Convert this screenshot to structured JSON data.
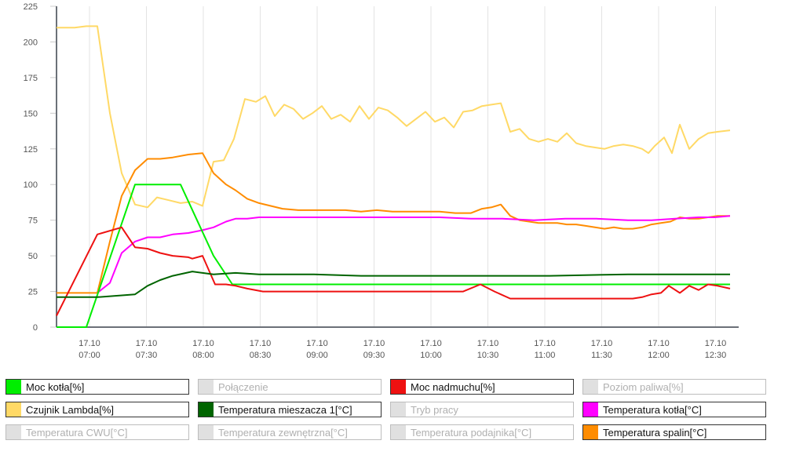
{
  "chart_data": {
    "type": "line",
    "title": "",
    "xlabel": "",
    "ylabel": "",
    "ylim": [
      0,
      225
    ],
    "yticks": [
      0,
      25,
      50,
      75,
      100,
      125,
      150,
      175,
      200,
      225
    ],
    "xticks": [
      {
        "date": "17.10",
        "time": "07:00"
      },
      {
        "date": "17.10",
        "time": "07:30"
      },
      {
        "date": "17.10",
        "time": "08:00"
      },
      {
        "date": "17.10",
        "time": "08:30"
      },
      {
        "date": "17.10",
        "time": "09:00"
      },
      {
        "date": "17.10",
        "time": "09:30"
      },
      {
        "date": "17.10",
        "time": "10:00"
      },
      {
        "date": "17.10",
        "time": "10:30"
      },
      {
        "date": "17.10",
        "time": "11:00"
      },
      {
        "date": "17.10",
        "time": "11:30"
      },
      {
        "date": "17.10",
        "time": "12:00"
      },
      {
        "date": "17.10",
        "time": "12:30"
      }
    ],
    "x_range": [
      "06:43",
      "12:58"
    ],
    "grid": {
      "vertical": true,
      "horizontal": false
    },
    "legend_position": "bottom",
    "series": [
      {
        "name": "Czujnik Lambda[%]",
        "color": "#FFD966",
        "visible": true,
        "points": [
          [
            72,
            210
          ],
          [
            95,
            210
          ],
          [
            110,
            211
          ],
          [
            124,
            211
          ],
          [
            140,
            150
          ],
          [
            155,
            108
          ],
          [
            172,
            86
          ],
          [
            188,
            84
          ],
          [
            200,
            91
          ],
          [
            215,
            89
          ],
          [
            230,
            87
          ],
          [
            245,
            88
          ],
          [
            258,
            85
          ],
          [
            272,
            116
          ],
          [
            285,
            117
          ],
          [
            298,
            132
          ],
          [
            312,
            160
          ],
          [
            326,
            158
          ],
          [
            338,
            162
          ],
          [
            350,
            148
          ],
          [
            362,
            156
          ],
          [
            374,
            153
          ],
          [
            386,
            146
          ],
          [
            398,
            150
          ],
          [
            410,
            155
          ],
          [
            422,
            146
          ],
          [
            434,
            149
          ],
          [
            446,
            144
          ],
          [
            458,
            155
          ],
          [
            470,
            146
          ],
          [
            482,
            154
          ],
          [
            494,
            152
          ],
          [
            506,
            147
          ],
          [
            518,
            141
          ],
          [
            530,
            146
          ],
          [
            542,
            151
          ],
          [
            554,
            144
          ],
          [
            566,
            147
          ],
          [
            578,
            140
          ],
          [
            590,
            151
          ],
          [
            602,
            152
          ],
          [
            614,
            155
          ],
          [
            626,
            156
          ],
          [
            638,
            157
          ],
          [
            650,
            137
          ],
          [
            662,
            139
          ],
          [
            674,
            132
          ],
          [
            686,
            130
          ],
          [
            698,
            132
          ],
          [
            710,
            130
          ],
          [
            722,
            136
          ],
          [
            734,
            129
          ],
          [
            746,
            127
          ],
          [
            758,
            126
          ],
          [
            770,
            125
          ],
          [
            782,
            127
          ],
          [
            794,
            128
          ],
          [
            806,
            127
          ],
          [
            818,
            125
          ],
          [
            826,
            122
          ],
          [
            834,
            127
          ],
          [
            846,
            133
          ],
          [
            856,
            122
          ],
          [
            866,
            142
          ],
          [
            878,
            125
          ],
          [
            890,
            132
          ],
          [
            902,
            136
          ],
          [
            914,
            137
          ],
          [
            930,
            138
          ]
        ]
      },
      {
        "name": "Temperatura spalin[°C]",
        "color": "#FF8C00",
        "visible": true,
        "points": [
          [
            72,
            24
          ],
          [
            95,
            24
          ],
          [
            110,
            24
          ],
          [
            124,
            24
          ],
          [
            140,
            60
          ],
          [
            155,
            92
          ],
          [
            172,
            110
          ],
          [
            188,
            118
          ],
          [
            204,
            118
          ],
          [
            220,
            119
          ],
          [
            240,
            121
          ],
          [
            258,
            122
          ],
          [
            272,
            108
          ],
          [
            288,
            100
          ],
          [
            300,
            96
          ],
          [
            315,
            90
          ],
          [
            330,
            87
          ],
          [
            345,
            85
          ],
          [
            360,
            83
          ],
          [
            380,
            82
          ],
          [
            400,
            82
          ],
          [
            420,
            82
          ],
          [
            440,
            82
          ],
          [
            460,
            81
          ],
          [
            480,
            82
          ],
          [
            500,
            81
          ],
          [
            520,
            81
          ],
          [
            540,
            81
          ],
          [
            560,
            81
          ],
          [
            580,
            80
          ],
          [
            600,
            80
          ],
          [
            614,
            83
          ],
          [
            626,
            84
          ],
          [
            638,
            86
          ],
          [
            650,
            78
          ],
          [
            662,
            75
          ],
          [
            674,
            74
          ],
          [
            686,
            73
          ],
          [
            698,
            73
          ],
          [
            710,
            73
          ],
          [
            722,
            72
          ],
          [
            734,
            72
          ],
          [
            746,
            71
          ],
          [
            758,
            70
          ],
          [
            770,
            69
          ],
          [
            782,
            70
          ],
          [
            794,
            69
          ],
          [
            806,
            69
          ],
          [
            818,
            70
          ],
          [
            830,
            72
          ],
          [
            842,
            73
          ],
          [
            854,
            74
          ],
          [
            866,
            77
          ],
          [
            878,
            76
          ],
          [
            890,
            76
          ],
          [
            902,
            77
          ],
          [
            914,
            78
          ],
          [
            930,
            78
          ]
        ]
      },
      {
        "name": "Temperatura kotła[°C]",
        "color": "#FF00FF",
        "visible": true,
        "points": [
          [
            124,
            24
          ],
          [
            140,
            31
          ],
          [
            155,
            52
          ],
          [
            172,
            60
          ],
          [
            188,
            63
          ],
          [
            204,
            63
          ],
          [
            220,
            65
          ],
          [
            240,
            66
          ],
          [
            258,
            68
          ],
          [
            272,
            70
          ],
          [
            288,
            74
          ],
          [
            300,
            76
          ],
          [
            315,
            76
          ],
          [
            330,
            77
          ],
          [
            345,
            77
          ],
          [
            360,
            77
          ],
          [
            400,
            77
          ],
          [
            440,
            77
          ],
          [
            480,
            77
          ],
          [
            520,
            77
          ],
          [
            560,
            77
          ],
          [
            600,
            76
          ],
          [
            640,
            76
          ],
          [
            680,
            75
          ],
          [
            720,
            76
          ],
          [
            760,
            76
          ],
          [
            800,
            75
          ],
          [
            830,
            75
          ],
          [
            860,
            76
          ],
          [
            890,
            77
          ],
          [
            910,
            77
          ],
          [
            930,
            78
          ]
        ]
      },
      {
        "name": "Moc kotła[%]",
        "color": "#00EE00",
        "visible": true,
        "points": [
          [
            72,
            0
          ],
          [
            110,
            0
          ],
          [
            172,
            100
          ],
          [
            230,
            100
          ],
          [
            272,
            50
          ],
          [
            296,
            30
          ],
          [
            400,
            30
          ],
          [
            500,
            30
          ],
          [
            600,
            30
          ],
          [
            700,
            30
          ],
          [
            800,
            30
          ],
          [
            900,
            30
          ],
          [
            930,
            30
          ]
        ]
      },
      {
        "name": "Moc nadmuchu[%]",
        "color": "#EE1111",
        "visible": true,
        "points": [
          [
            72,
            8
          ],
          [
            124,
            65
          ],
          [
            155,
            70
          ],
          [
            172,
            56
          ],
          [
            188,
            55
          ],
          [
            204,
            52
          ],
          [
            220,
            50
          ],
          [
            240,
            49
          ],
          [
            245,
            48
          ],
          [
            258,
            50
          ],
          [
            274,
            30
          ],
          [
            288,
            30
          ],
          [
            300,
            29
          ],
          [
            315,
            27
          ],
          [
            335,
            25
          ],
          [
            400,
            25
          ],
          [
            500,
            25
          ],
          [
            590,
            25
          ],
          [
            612,
            30
          ],
          [
            630,
            25
          ],
          [
            650,
            20
          ],
          [
            700,
            20
          ],
          [
            760,
            20
          ],
          [
            806,
            20
          ],
          [
            818,
            21
          ],
          [
            830,
            23
          ],
          [
            842,
            24
          ],
          [
            852,
            29
          ],
          [
            866,
            24
          ],
          [
            878,
            29
          ],
          [
            890,
            26
          ],
          [
            902,
            30
          ],
          [
            914,
            29
          ],
          [
            930,
            27
          ]
        ]
      },
      {
        "name": "Temperatura mieszacza 1[°C]",
        "color": "#006400",
        "visible": true,
        "points": [
          [
            72,
            21
          ],
          [
            124,
            21
          ],
          [
            172,
            23
          ],
          [
            188,
            29
          ],
          [
            204,
            33
          ],
          [
            220,
            36
          ],
          [
            245,
            39
          ],
          [
            258,
            38
          ],
          [
            272,
            37
          ],
          [
            300,
            38
          ],
          [
            330,
            37
          ],
          [
            400,
            37
          ],
          [
            460,
            36
          ],
          [
            540,
            36
          ],
          [
            600,
            36
          ],
          [
            700,
            36
          ],
          [
            800,
            37
          ],
          [
            930,
            37
          ]
        ]
      },
      {
        "name": "Połączenie",
        "color": "#E0E0E0",
        "visible": false,
        "points": []
      },
      {
        "name": "Poziom paliwa[%]",
        "color": "#E0E0E0",
        "visible": false,
        "points": []
      },
      {
        "name": "Tryb pracy",
        "color": "#E0E0E0",
        "visible": false,
        "points": []
      },
      {
        "name": "Temperatura CWU[°C]",
        "color": "#E0E0E0",
        "visible": false,
        "points": []
      },
      {
        "name": "Temperatura zewnętrzna[°C]",
        "color": "#E0E0E0",
        "visible": false,
        "points": []
      },
      {
        "name": "Temperatura podajnika[°C]",
        "color": "#E0E0E0",
        "visible": false,
        "points": []
      }
    ]
  },
  "legend": {
    "items": [
      {
        "label": "Moc kotła[%]",
        "color": "#00EE00",
        "active": true
      },
      {
        "label": "Połączenie",
        "color": "#E0E0E0",
        "active": false
      },
      {
        "label": "Moc nadmuchu[%]",
        "color": "#EE1111",
        "active": true
      },
      {
        "label": "Poziom paliwa[%]",
        "color": "#E0E0E0",
        "active": false
      },
      {
        "label": "Czujnik Lambda[%]",
        "color": "#FFD966",
        "active": true
      },
      {
        "label": "Temperatura mieszacza 1[°C]",
        "color": "#006400",
        "active": true
      },
      {
        "label": "Tryb pracy",
        "color": "#E0E0E0",
        "active": false
      },
      {
        "label": "Temperatura kotła[°C]",
        "color": "#FF00FF",
        "active": true
      },
      {
        "label": "Temperatura CWU[°C]",
        "color": "#E0E0E0",
        "active": false
      },
      {
        "label": "Temperatura zewnętrzna[°C]",
        "color": "#E0E0E0",
        "active": false
      },
      {
        "label": "Temperatura podajnika[°C]",
        "color": "#E0E0E0",
        "active": false
      },
      {
        "label": "Temperatura spalin[°C]",
        "color": "#FF8C00",
        "active": true
      }
    ]
  }
}
